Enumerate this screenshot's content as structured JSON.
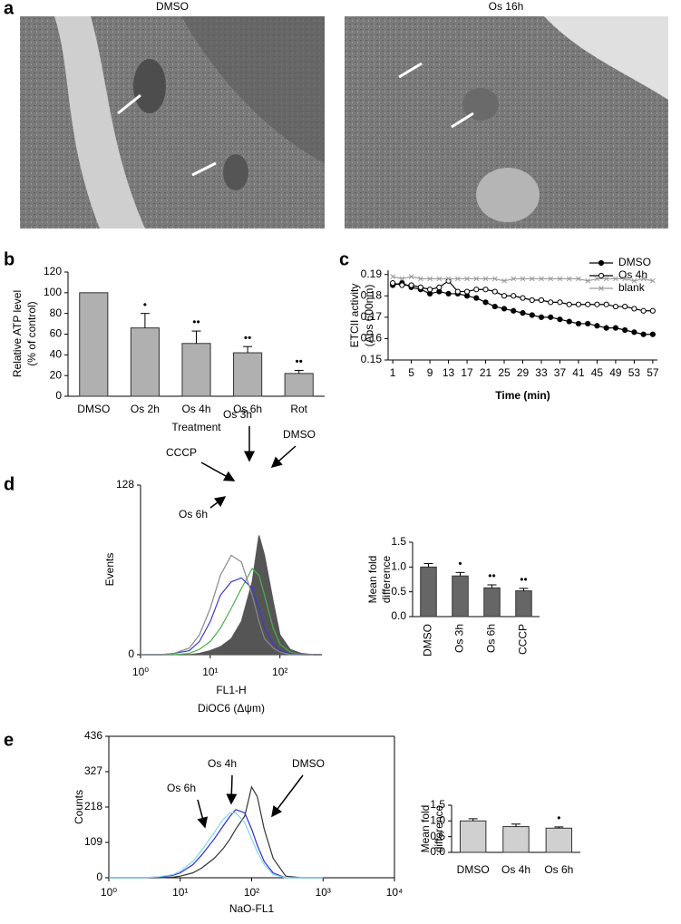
{
  "panel_labels": [
    "a",
    "b",
    "c",
    "d",
    "e"
  ],
  "micrographs": [
    {
      "title": "DMSO"
    },
    {
      "title": "Os 16h"
    }
  ],
  "chart_data": [
    {
      "type": "bar",
      "categories": [
        "DMSO",
        "Os 2h",
        "Os 4h",
        "Os 6h",
        "Rot"
      ],
      "values": [
        100,
        66,
        51,
        42,
        22
      ],
      "errors": [
        0,
        14,
        12,
        6,
        3
      ],
      "significance": [
        null,
        "•",
        "••",
        "••",
        "••"
      ],
      "color": "#b0b0b0",
      "ylim": [
        0,
        120
      ],
      "yticks": [
        0,
        20,
        40,
        60,
        80,
        100,
        120
      ],
      "ylabel": [
        "Relative ATP level",
        "(% of control)"
      ],
      "xlabel": "Treatment"
    },
    {
      "type": "line",
      "x": [
        1,
        3,
        5,
        7,
        9,
        11,
        13,
        15,
        17,
        19,
        21,
        23,
        25,
        27,
        29,
        31,
        33,
        35,
        37,
        39,
        41,
        43,
        45,
        47,
        49,
        51,
        53,
        55,
        57
      ],
      "xlim": [
        0,
        58
      ],
      "xticks": [
        1,
        5,
        9,
        13,
        17,
        21,
        25,
        29,
        33,
        37,
        41,
        45,
        49,
        53,
        57
      ],
      "ylim": [
        0.15,
        0.192
      ],
      "yticks": [
        0.15,
        0.16,
        0.17,
        0.18,
        0.19
      ],
      "ylabel": [
        "ETCII activity",
        "(Abs 600nm)"
      ],
      "xlabel": "Time (min)",
      "legend": "top-right",
      "series": [
        {
          "name": "DMSO",
          "color": "#000000",
          "marker": "filled",
          "values": [
            0.185,
            0.186,
            0.184,
            0.183,
            0.181,
            0.182,
            0.181,
            0.181,
            0.18,
            0.179,
            0.177,
            0.175,
            0.174,
            0.173,
            0.172,
            0.171,
            0.17,
            0.17,
            0.169,
            0.168,
            0.167,
            0.167,
            0.166,
            0.165,
            0.165,
            0.164,
            0.163,
            0.162,
            0.162
          ]
        },
        {
          "name": "Os 4h",
          "color": "#000000",
          "marker": "open",
          "values": [
            0.186,
            0.185,
            0.185,
            0.184,
            0.183,
            0.184,
            0.187,
            0.182,
            0.182,
            0.183,
            0.183,
            0.182,
            0.18,
            0.18,
            0.179,
            0.178,
            0.178,
            0.177,
            0.177,
            0.176,
            0.176,
            0.176,
            0.176,
            0.176,
            0.175,
            0.175,
            0.174,
            0.173,
            0.173
          ]
        },
        {
          "name": "blank",
          "color": "#999999",
          "marker": "cross",
          "values": [
            0.189,
            0.188,
            0.189,
            0.188,
            0.188,
            0.188,
            0.188,
            0.188,
            0.188,
            0.188,
            0.188,
            0.188,
            0.187,
            0.188,
            0.188,
            0.188,
            0.188,
            0.188,
            0.188,
            0.188,
            0.188,
            0.187,
            0.188,
            0.188,
            0.188,
            0.188,
            0.187,
            0.188,
            0.187
          ]
        }
      ]
    },
    {
      "type": "flow",
      "log_x": true,
      "x": [
        1,
        2,
        3,
        5,
        7,
        10,
        14,
        20,
        28,
        40,
        50,
        60,
        80,
        100,
        140,
        200,
        300
      ],
      "xlim": [
        1,
        400
      ],
      "xticks": [
        {
          "value": 1,
          "label": "10⁰"
        },
        {
          "value": 10,
          "label": "10¹"
        },
        {
          "value": 100,
          "label": "10²"
        }
      ],
      "ylim": [
        0,
        128
      ],
      "yticks": [
        0,
        128
      ],
      "ylabel": "Events",
      "xlabel": [
        "FL1-H",
        "DiOC6 (Δψm)"
      ],
      "series": [
        {
          "name": "DMSO",
          "color": "#555555",
          "filled": true,
          "values": [
            0,
            0,
            0,
            0,
            1,
            3,
            6,
            12,
            25,
            55,
            90,
            75,
            40,
            15,
            4,
            1,
            0
          ]
        },
        {
          "name": "Os 3h",
          "color": "#4caf50",
          "values": [
            0,
            0,
            0,
            1,
            4,
            10,
            20,
            35,
            50,
            65,
            60,
            45,
            20,
            8,
            2,
            0,
            0
          ]
        },
        {
          "name": "Os 6h",
          "color": "#3a3ad0",
          "values": [
            0,
            0,
            1,
            3,
            10,
            25,
            45,
            55,
            58,
            50,
            35,
            20,
            8,
            3,
            1,
            0,
            0
          ]
        },
        {
          "name": "CCCP",
          "color": "#888888",
          "values": [
            0,
            0,
            1,
            5,
            15,
            35,
            60,
            75,
            70,
            45,
            25,
            12,
            5,
            2,
            0,
            0,
            0
          ]
        }
      ]
    },
    {
      "type": "bar",
      "categories": [
        "DMSO",
        "Os 3h",
        "Os 6h",
        "CCCP"
      ],
      "values": [
        1.0,
        0.82,
        0.58,
        0.52
      ],
      "errors": [
        0.07,
        0.07,
        0.06,
        0.05
      ],
      "significance": [
        null,
        "•",
        "••",
        "••"
      ],
      "color": "#666666",
      "ylim": [
        0,
        1.5
      ],
      "yticks": [
        {
          "value": 0,
          "label": "0.0"
        },
        0.5,
        {
          "value": 1,
          "label": "1.0"
        },
        1.5
      ],
      "ylabel": [
        "Mean fold",
        "difference"
      ]
    },
    {
      "type": "flow",
      "log_x": true,
      "x": [
        1,
        3,
        5,
        8,
        10,
        15,
        20,
        30,
        40,
        50,
        60,
        80,
        100,
        120,
        150,
        200,
        300,
        500,
        1000
      ],
      "xlim": [
        1,
        10000
      ],
      "xticks": [
        {
          "value": 1,
          "label": "10⁰"
        },
        {
          "value": 10,
          "label": "10¹"
        },
        {
          "value": 100,
          "label": "10²"
        },
        {
          "value": 1000,
          "label": "10³"
        },
        {
          "value": 10000,
          "label": "10⁴"
        }
      ],
      "ylim": [
        0,
        436
      ],
      "yticks": [
        0,
        109,
        218,
        327,
        436
      ],
      "ylabel": "Counts",
      "xlabel": [
        "NaO-FL1"
      ],
      "series": [
        {
          "name": "DMSO",
          "color": "#333333",
          "values": [
            0,
            0,
            0,
            2,
            5,
            15,
            30,
            60,
            90,
            120,
            150,
            190,
            280,
            250,
            150,
            60,
            5,
            0,
            0
          ]
        },
        {
          "name": "Os 4h",
          "color": "#2a2ae0",
          "values": [
            0,
            0,
            2,
            8,
            15,
            40,
            70,
            120,
            160,
            190,
            210,
            200,
            150,
            100,
            50,
            15,
            0,
            0,
            0
          ]
        },
        {
          "name": "Os 6h",
          "color": "#7fd8e8",
          "values": [
            0,
            0,
            3,
            10,
            20,
            50,
            85,
            140,
            180,
            200,
            200,
            170,
            120,
            80,
            40,
            10,
            0,
            0,
            0
          ]
        }
      ]
    },
    {
      "type": "bar",
      "categories": [
        "DMSO",
        "Os 4h",
        "Os 6h"
      ],
      "values": [
        1.0,
        0.82,
        0.77
      ],
      "errors": [
        0.07,
        0.08,
        0.04
      ],
      "significance": [
        null,
        null,
        "•"
      ],
      "color": "#d0d0d0",
      "ylim": [
        0,
        1.5
      ],
      "yticks": [
        {
          "value": 0,
          "label": "0.0"
        },
        0.5,
        {
          "value": 1,
          "label": "1.0"
        },
        1.5
      ],
      "ylabel": [
        "Mean fold",
        "difference"
      ]
    }
  ]
}
